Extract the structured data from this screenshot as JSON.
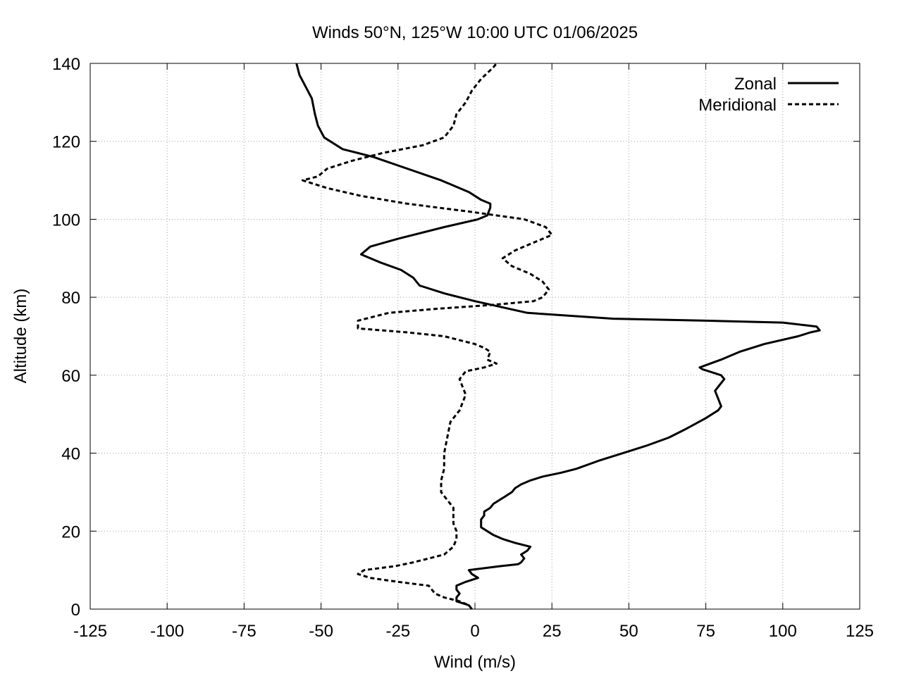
{
  "chart_data": {
    "type": "line",
    "title": "Winds 50°N, 125°W 10:00 UTC 01/06/2025",
    "xlabel": "Wind (m/s)",
    "ylabel": "Altitude (km)",
    "xlim": [
      -125,
      125
    ],
    "ylim": [
      0,
      140
    ],
    "xticks": [
      -125,
      -100,
      -75,
      -50,
      -25,
      0,
      25,
      50,
      75,
      100,
      125
    ],
    "yticks": [
      0,
      20,
      40,
      60,
      80,
      100,
      120,
      140
    ],
    "grid": true,
    "legend_position": "top-right",
    "series": [
      {
        "name": "Zonal",
        "style": "solid",
        "color": "#000000",
        "points": [
          [
            -1,
            0
          ],
          [
            -2,
            1
          ],
          [
            -6,
            2
          ],
          [
            -6,
            3
          ],
          [
            -5,
            4
          ],
          [
            -6,
            5
          ],
          [
            -6,
            6
          ],
          [
            -3,
            7
          ],
          [
            1,
            8
          ],
          [
            -1,
            9
          ],
          [
            -2,
            10
          ],
          [
            3,
            10.5
          ],
          [
            8,
            11
          ],
          [
            14,
            11.5
          ],
          [
            15,
            12
          ],
          [
            16,
            13
          ],
          [
            15,
            14
          ],
          [
            17,
            15
          ],
          [
            18,
            16
          ],
          [
            13,
            17
          ],
          [
            9,
            18
          ],
          [
            6,
            19
          ],
          [
            4,
            20
          ],
          [
            2,
            21
          ],
          [
            2,
            22
          ],
          [
            2,
            23
          ],
          [
            3,
            24
          ],
          [
            3,
            25
          ],
          [
            5,
            26
          ],
          [
            6,
            27
          ],
          [
            8,
            28
          ],
          [
            10,
            29
          ],
          [
            12,
            30
          ],
          [
            13,
            31
          ],
          [
            15,
            32
          ],
          [
            18,
            33
          ],
          [
            22,
            34
          ],
          [
            28,
            35
          ],
          [
            33,
            36
          ],
          [
            40,
            38
          ],
          [
            48,
            40
          ],
          [
            56,
            42
          ],
          [
            63,
            44
          ],
          [
            68,
            46
          ],
          [
            75,
            49
          ],
          [
            79,
            51
          ],
          [
            80,
            52
          ],
          [
            79,
            54
          ],
          [
            78,
            56
          ],
          [
            80,
            58
          ],
          [
            81,
            59
          ],
          [
            80,
            60
          ],
          [
            76,
            61
          ],
          [
            74,
            61.5
          ],
          [
            73,
            62
          ],
          [
            80,
            64
          ],
          [
            86,
            66
          ],
          [
            94,
            68
          ],
          [
            105,
            70
          ],
          [
            109,
            71
          ],
          [
            112,
            71.5
          ],
          [
            111,
            72.5
          ],
          [
            100,
            73.5
          ],
          [
            75,
            74
          ],
          [
            45,
            74.5
          ],
          [
            17,
            76
          ],
          [
            0,
            79
          ],
          [
            -10,
            81
          ],
          [
            -18,
            83
          ],
          [
            -20,
            85
          ],
          [
            -24,
            87
          ],
          [
            -31,
            89
          ],
          [
            -37,
            91
          ],
          [
            -34,
            93
          ],
          [
            -25,
            95
          ],
          [
            -10,
            98
          ],
          [
            1,
            100
          ],
          [
            4,
            101
          ],
          [
            5,
            103
          ],
          [
            5,
            104
          ],
          [
            2,
            105
          ],
          [
            -2,
            107
          ],
          [
            -11,
            110
          ],
          [
            -22,
            113
          ],
          [
            -33,
            116
          ],
          [
            -43,
            118
          ],
          [
            -49,
            121
          ],
          [
            -51,
            124
          ],
          [
            -52,
            127
          ],
          [
            -53,
            131
          ],
          [
            -55,
            134
          ],
          [
            -57,
            137
          ],
          [
            -58,
            140
          ]
        ]
      },
      {
        "name": "Meridional",
        "style": "dashed",
        "color": "#000000",
        "points": [
          [
            -1,
            0
          ],
          [
            -2,
            1
          ],
          [
            -5,
            2
          ],
          [
            -10,
            3
          ],
          [
            -13,
            4
          ],
          [
            -15,
            6
          ],
          [
            -25,
            7
          ],
          [
            -34,
            8
          ],
          [
            -38,
            9
          ],
          [
            -36,
            10
          ],
          [
            -26,
            11
          ],
          [
            -20,
            12
          ],
          [
            -10,
            14
          ],
          [
            -7,
            16
          ],
          [
            -6,
            18
          ],
          [
            -6,
            20
          ],
          [
            -7,
            22
          ],
          [
            -7,
            24
          ],
          [
            -7,
            26
          ],
          [
            -9,
            28
          ],
          [
            -11,
            30
          ],
          [
            -11,
            33
          ],
          [
            -10,
            36
          ],
          [
            -10,
            40
          ],
          [
            -9,
            44
          ],
          [
            -8,
            48
          ],
          [
            -5,
            51
          ],
          [
            -4,
            53
          ],
          [
            -3,
            55
          ],
          [
            -4,
            57
          ],
          [
            -5,
            59
          ],
          [
            -3,
            61
          ],
          [
            3,
            62
          ],
          [
            7,
            63
          ],
          [
            4,
            64
          ],
          [
            5,
            66
          ],
          [
            3,
            67
          ],
          [
            0,
            68
          ],
          [
            -10,
            70
          ],
          [
            -22,
            71
          ],
          [
            -38,
            72
          ],
          [
            -38,
            74
          ],
          [
            -28,
            76
          ],
          [
            -13,
            77
          ],
          [
            5,
            78
          ],
          [
            19,
            79
          ],
          [
            22,
            80
          ],
          [
            24,
            82
          ],
          [
            22,
            84
          ],
          [
            18,
            86
          ],
          [
            12,
            88
          ],
          [
            9,
            90
          ],
          [
            13,
            92
          ],
          [
            19,
            94
          ],
          [
            25,
            96
          ],
          [
            23,
            98
          ],
          [
            16,
            100
          ],
          [
            -2,
            102
          ],
          [
            -22,
            104
          ],
          [
            -37,
            106
          ],
          [
            -48,
            108
          ],
          [
            -52,
            109
          ],
          [
            -56,
            110
          ],
          [
            -51,
            111
          ],
          [
            -48,
            113
          ],
          [
            -40,
            115
          ],
          [
            -30,
            117
          ],
          [
            -17,
            119
          ],
          [
            -10,
            121
          ],
          [
            -7,
            124
          ],
          [
            -6,
            127
          ],
          [
            -3,
            130
          ],
          [
            -1,
            133
          ],
          [
            2,
            136
          ],
          [
            6,
            139
          ],
          [
            7,
            140
          ]
        ]
      }
    ]
  }
}
